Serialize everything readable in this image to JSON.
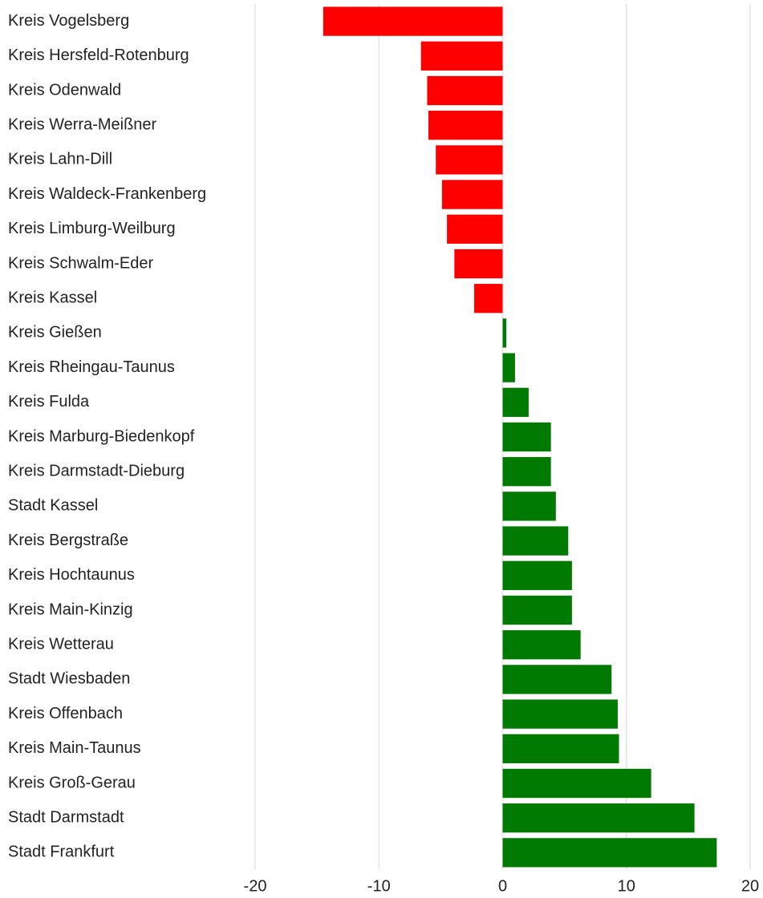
{
  "chart_data": {
    "type": "hbar",
    "categories": [
      "Kreis Vogelsberg",
      "Kreis Hersfeld-Rotenburg",
      "Kreis Odenwald",
      "Kreis Werra-Meißner",
      "Kreis Lahn-Dill",
      "Kreis Waldeck-Frankenberg",
      "Kreis Limburg-Weilburg",
      "Kreis Schwalm-Eder",
      "Kreis Kassel",
      "Kreis Gießen",
      "Kreis Rheingau-Taunus",
      "Kreis Fulda",
      "Kreis Marburg-Biedenkopf",
      "Kreis Darmstadt-Dieburg",
      "Stadt Kassel",
      "Kreis Bergstraße",
      "Kreis Hochtaunus",
      "Kreis Main-Kinzig",
      "Kreis Wetterau",
      "Stadt Wiesbaden",
      "Kreis Offenbach",
      "Kreis Main-Taunus",
      "Kreis Groß-Gerau",
      "Stadt Darmstadt",
      "Stadt Frankfurt"
    ],
    "values": [
      -14.5,
      -6.6,
      -6.1,
      -6.0,
      -5.4,
      -4.9,
      -4.5,
      -3.9,
      -2.3,
      0.3,
      1.0,
      2.1,
      3.9,
      3.9,
      4.3,
      5.3,
      5.6,
      5.6,
      6.3,
      8.8,
      9.3,
      9.4,
      12.0,
      15.5,
      17.3
    ],
    "color_negative": "#ff0000",
    "color_positive": "#007a00",
    "xlim": [
      -20,
      20
    ],
    "xticks": [
      -20,
      -10,
      0,
      10,
      20
    ],
    "grid": true
  }
}
